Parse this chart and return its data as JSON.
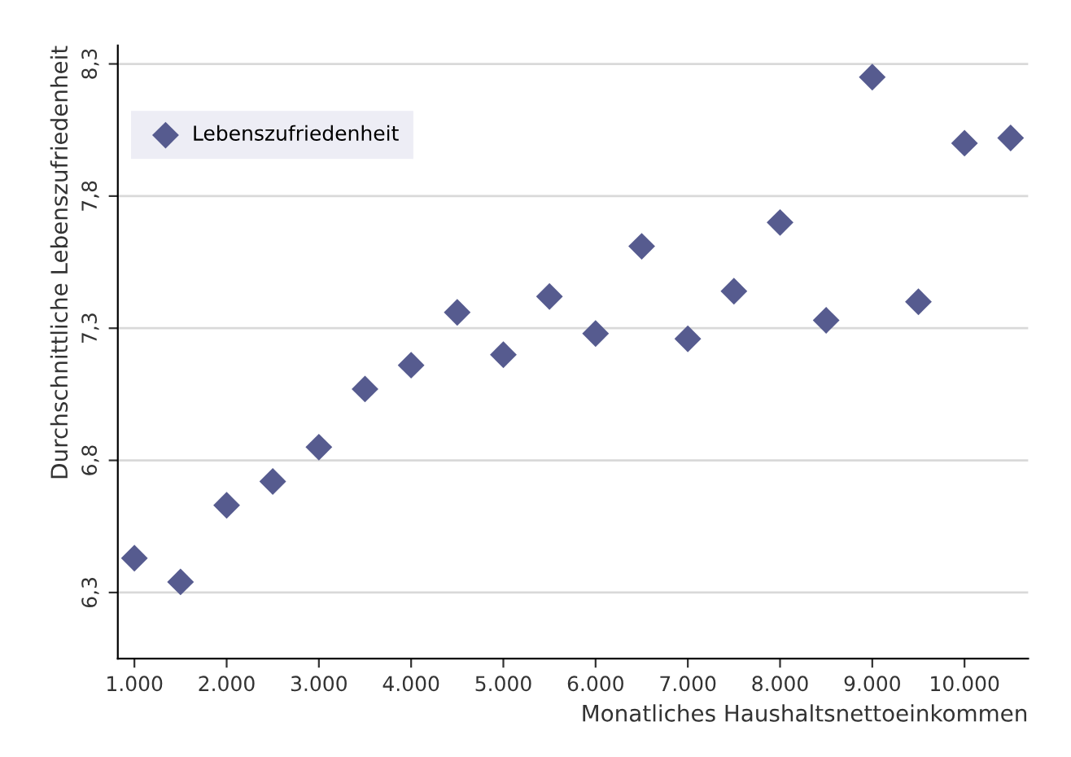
{
  "chart_data": {
    "type": "scatter",
    "xlabel": "Monatliches Haushaltsnettoeinkommen",
    "ylabel": "Durchschnittliche Lebenszufriedenheit",
    "x": [
      1000,
      1500,
      2000,
      2500,
      3000,
      3500,
      4000,
      4500,
      5000,
      5500,
      6000,
      6500,
      7000,
      7500,
      8000,
      8500,
      9000,
      9500,
      10000,
      10500
    ],
    "series": [
      {
        "name": "Lebenszufriedenheit",
        "color": "#565b8f",
        "values": [
          6.43,
          6.34,
          6.63,
          6.72,
          6.85,
          7.07,
          7.16,
          7.36,
          7.2,
          7.42,
          7.28,
          7.61,
          7.26,
          7.44,
          7.7,
          7.33,
          8.25,
          7.4,
          8.0,
          8.02
        ]
      }
    ],
    "xlim": [
      820,
      10690
    ],
    "ylim": [
      6.05,
      8.37
    ],
    "xticks": [
      {
        "value": 1000,
        "label": "1.000"
      },
      {
        "value": 2000,
        "label": "2.000"
      },
      {
        "value": 3000,
        "label": "3.000"
      },
      {
        "value": 4000,
        "label": "4.000"
      },
      {
        "value": 5000,
        "label": "5.000"
      },
      {
        "value": 6000,
        "label": "6.000"
      },
      {
        "value": 7000,
        "label": "7.000"
      },
      {
        "value": 8000,
        "label": "8.000"
      },
      {
        "value": 9000,
        "label": "9.000"
      },
      {
        "value": 10000,
        "label": "10.000"
      }
    ],
    "yticks": [
      {
        "value": 6.3,
        "label": "6,3"
      },
      {
        "value": 6.8,
        "label": "6,8"
      },
      {
        "value": 7.3,
        "label": "7,3"
      },
      {
        "value": 7.8,
        "label": "7,8"
      },
      {
        "value": 8.3,
        "label": "8,3"
      }
    ],
    "grid": "y",
    "legend": "top left",
    "marker": "diamond"
  }
}
